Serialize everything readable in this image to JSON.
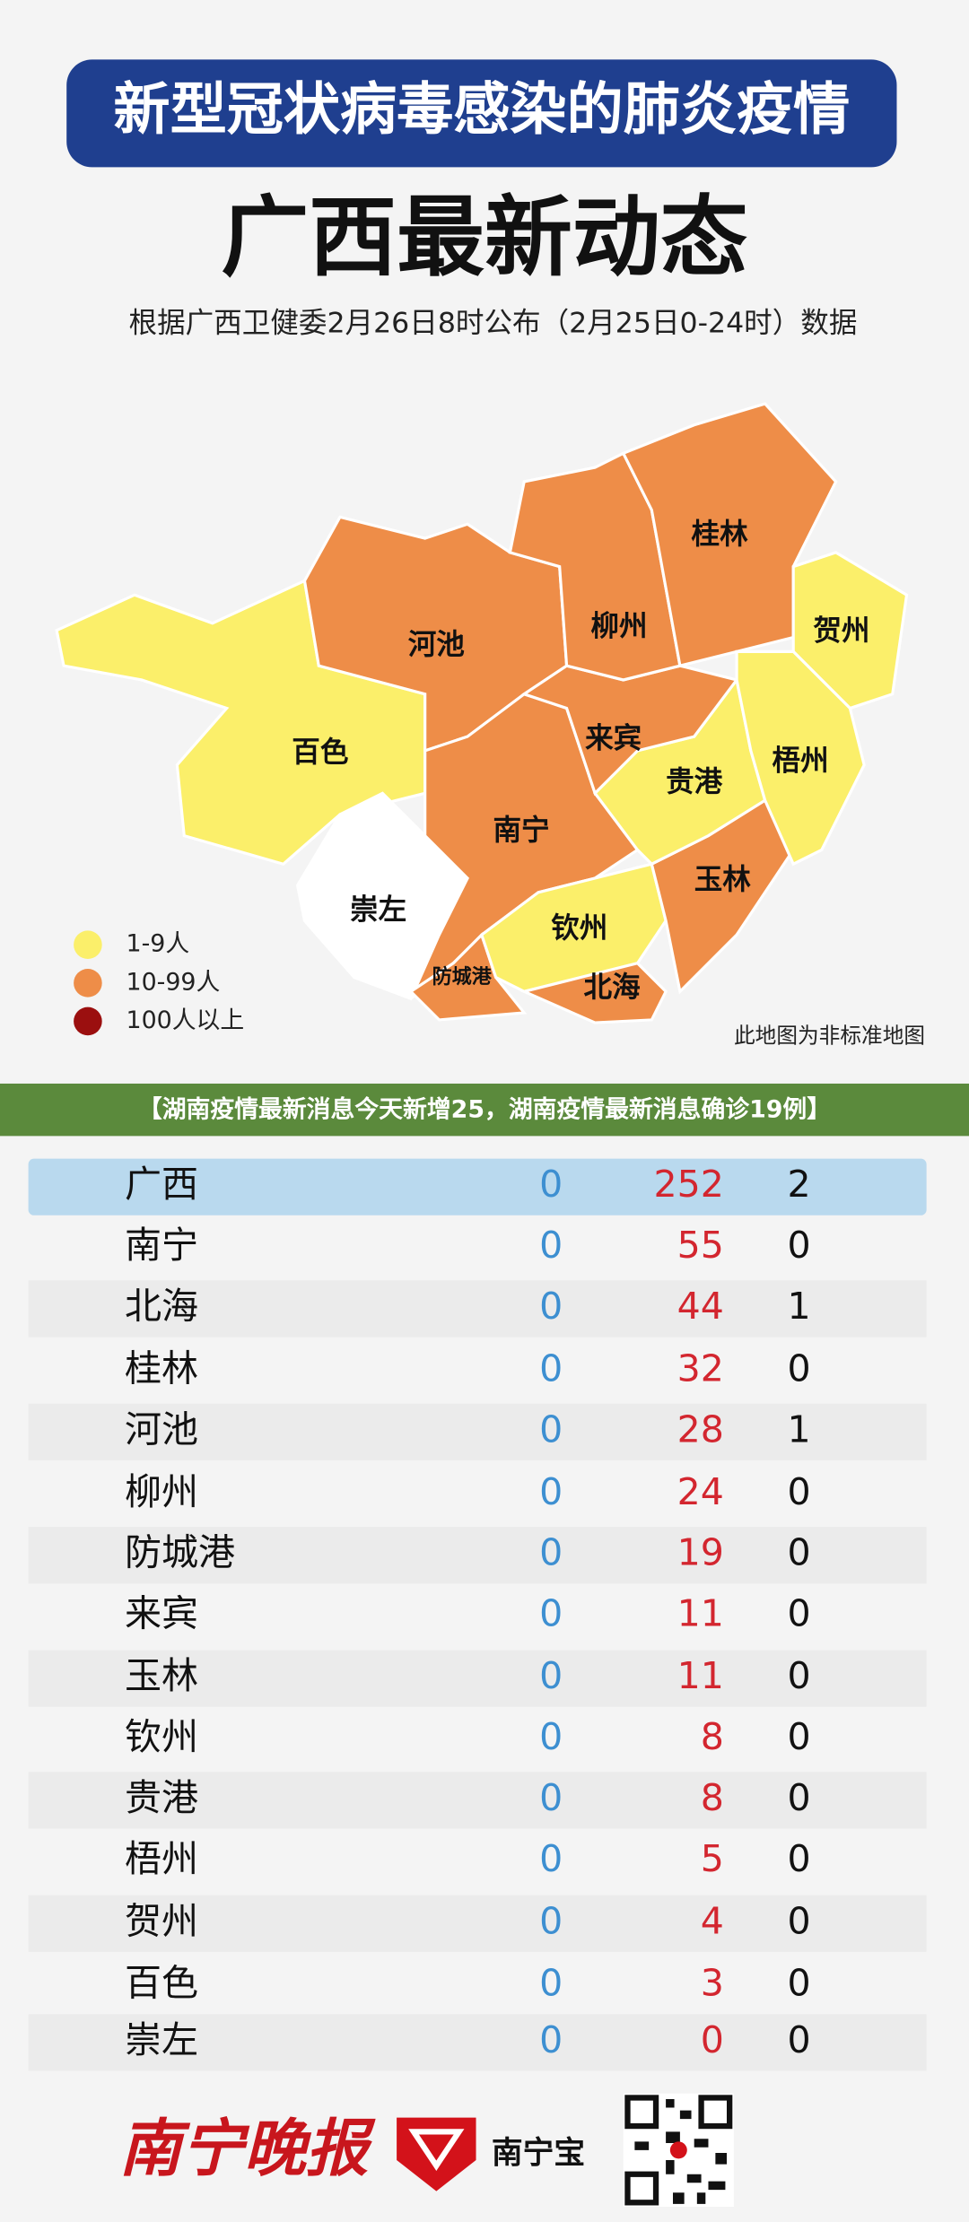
{
  "header": {
    "title": "新型冠状病毒感染的肺炎疫情",
    "headline": "广西最新动态",
    "subtitle": "根据广西卫健委2月26日8时公布（2月25日0-24时）数据"
  },
  "map": {
    "regions": [
      {
        "label": "百色",
        "color": "#fbef6a"
      },
      {
        "label": "河池",
        "color": "#ee8d48"
      },
      {
        "label": "崇左",
        "color": "#ffffff"
      },
      {
        "label": "南宁",
        "color": "#ee8d48"
      },
      {
        "label": "防城港",
        "color": "#ee8d48"
      },
      {
        "label": "钦州",
        "color": "#fbef6a"
      },
      {
        "label": "北海",
        "color": "#ee8d48"
      },
      {
        "label": "玉林",
        "color": "#ee8d48"
      },
      {
        "label": "贵港",
        "color": "#fbef6a"
      },
      {
        "label": "来宾",
        "color": "#ee8d48"
      },
      {
        "label": "柳州",
        "color": "#ee8d48"
      },
      {
        "label": "桂林",
        "color": "#ee8d48"
      },
      {
        "label": "贺州",
        "color": "#fbef6a"
      },
      {
        "label": "梧州",
        "color": "#fbef6a"
      }
    ],
    "legend": [
      {
        "label": "1-9人",
        "color": "#fbef6a"
      },
      {
        "label": "10-99人",
        "color": "#ee8d48"
      },
      {
        "label": "100人以上",
        "color": "#9b0f0f"
      }
    ],
    "note": "此地图为非标准地图"
  },
  "banner": "【湖南疫情最新消息今天新增25，湖南疫情最新消息确诊19例】",
  "table": {
    "rows": [
      [
        "广西",
        0,
        252,
        2
      ],
      [
        "南宁",
        0,
        55,
        0
      ],
      [
        "北海",
        0,
        44,
        1
      ],
      [
        "桂林",
        0,
        32,
        0
      ],
      [
        "河池",
        0,
        28,
        1
      ],
      [
        "柳州",
        0,
        24,
        0
      ],
      [
        "防城港",
        0,
        19,
        0
      ],
      [
        "来宾",
        0,
        11,
        0
      ],
      [
        "玉林",
        0,
        11,
        0
      ],
      [
        "钦州",
        0,
        8,
        0
      ],
      [
        "贵港",
        0,
        8,
        0
      ],
      [
        "梧州",
        0,
        5,
        0
      ],
      [
        "贺州",
        0,
        4,
        0
      ],
      [
        "百色",
        0,
        3,
        0
      ],
      [
        "崇左",
        0,
        0,
        0
      ]
    ]
  },
  "footer": {
    "logo": "南宁晚报",
    "app": "南宁宝"
  }
}
